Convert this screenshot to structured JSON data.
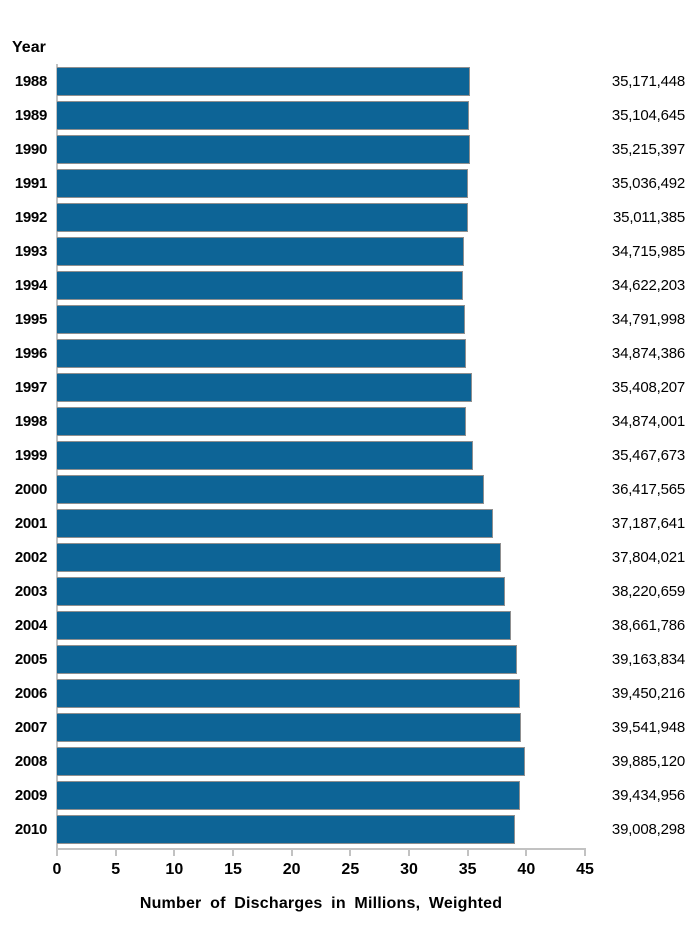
{
  "chart_data": {
    "type": "bar",
    "orientation": "horizontal",
    "title": "",
    "xlabel": "Number of Discharges in Millions, Weighted",
    "ylabel": "Year",
    "xlim": [
      0,
      45
    ],
    "x_ticks": [
      0,
      5,
      10,
      15,
      20,
      25,
      30,
      35,
      40,
      45
    ],
    "grid": false,
    "legend": false,
    "value_unit_divisor": 1000000,
    "categories": [
      "1988",
      "1989",
      "1990",
      "1991",
      "1992",
      "1993",
      "1994",
      "1995",
      "1996",
      "1997",
      "1998",
      "1999",
      "2000",
      "2001",
      "2002",
      "2003",
      "2004",
      "2005",
      "2006",
      "2007",
      "2008",
      "2009",
      "2010"
    ],
    "values": [
      35171448,
      35104645,
      35215397,
      35036492,
      35011385,
      34715985,
      34622203,
      34791998,
      34874386,
      35408207,
      34874001,
      35467673,
      36417565,
      37187641,
      37804021,
      38220659,
      38661786,
      39163834,
      39450216,
      39541948,
      39885120,
      39434956,
      39008298
    ],
    "value_labels": [
      "35,171,448",
      "35,104,645",
      "35,215,397",
      "35,036,492",
      "35,011,385",
      "34,715,985",
      "34,622,203",
      "34,791,998",
      "34,874,386",
      "35,408,207",
      "34,874,001",
      "35,467,673",
      "36,417,565",
      "37,187,641",
      "37,804,021",
      "38,220,659",
      "38,661,786",
      "39,163,834",
      "39,450,216",
      "39,541,948",
      "39,885,120",
      "39,434,956",
      "39,008,298"
    ],
    "colors": {
      "bar": "#0d6496",
      "bar_border": "#8f8f8f",
      "axis": "#c2c2c2",
      "text": "#000000",
      "background": "#ffffff"
    }
  }
}
